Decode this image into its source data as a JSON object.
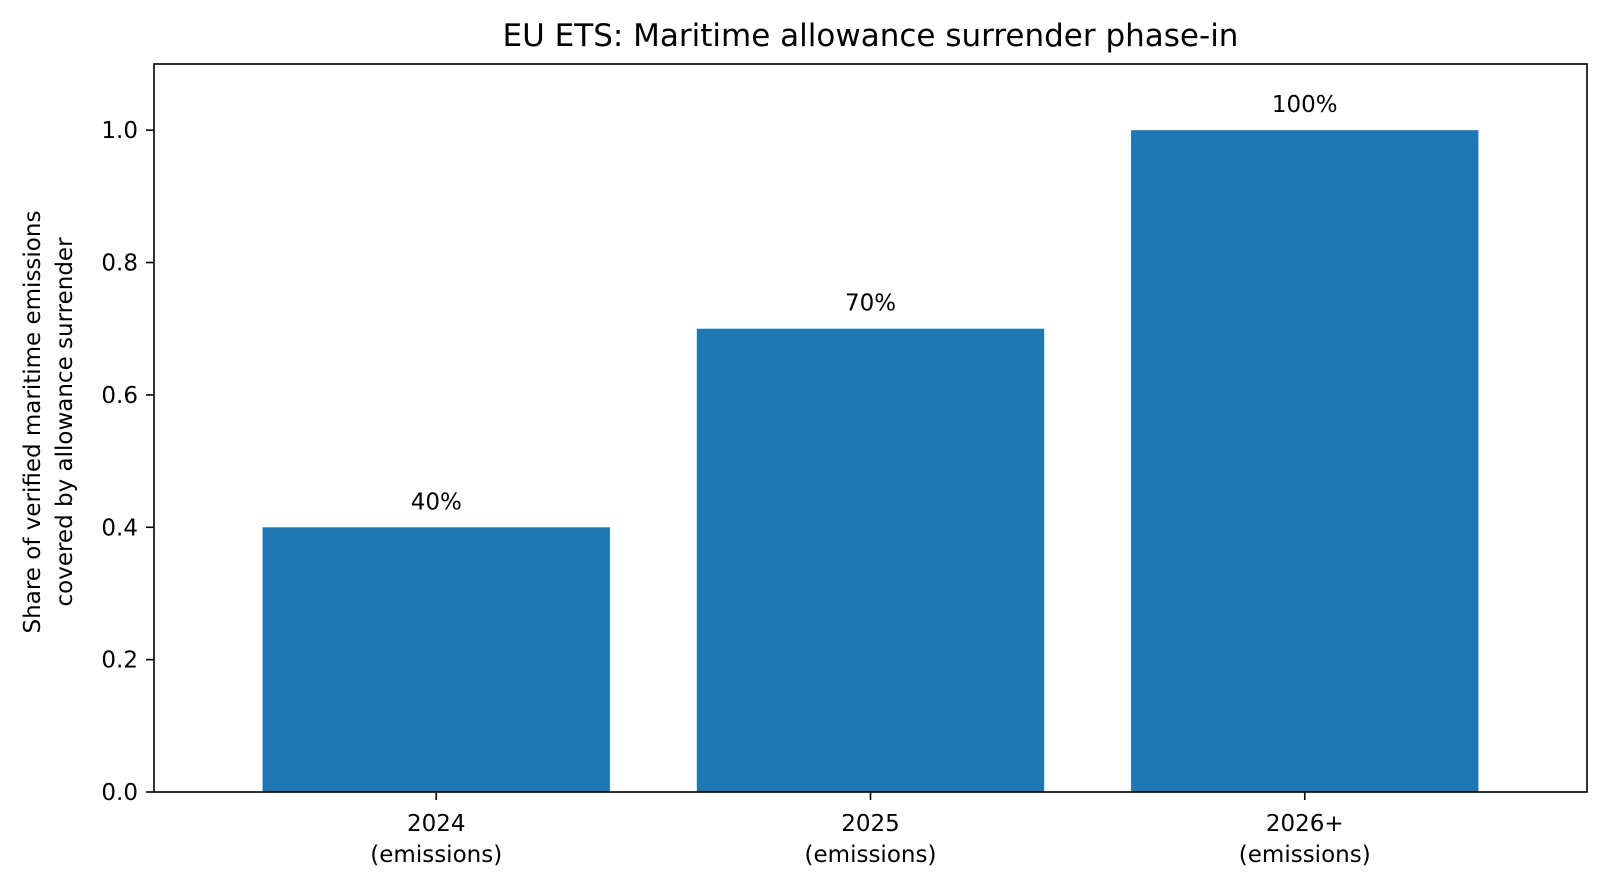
{
  "chart_data": {
    "type": "bar",
    "title": "EU ETS: Maritime allowance surrender phase-in",
    "xlabel": "",
    "ylabel_lines": [
      "Share of verified maritime emissions",
      "covered by allowance surrender"
    ],
    "categories": [
      [
        "2024",
        "(emissions)"
      ],
      [
        "2025",
        "(emissions)"
      ],
      [
        "2026+",
        "(emissions)"
      ]
    ],
    "values": [
      0.4,
      0.7,
      1.0
    ],
    "value_labels": [
      "40%",
      "70%",
      "100%"
    ],
    "ylim": [
      0,
      1.1
    ],
    "yticks": [
      0.0,
      0.2,
      0.4,
      0.6,
      0.8,
      1.0
    ],
    "ytick_labels": [
      "0.0",
      "0.2",
      "0.4",
      "0.6",
      "0.8",
      "1.0"
    ],
    "grid": false,
    "bar_color": "#1f77b4"
  }
}
